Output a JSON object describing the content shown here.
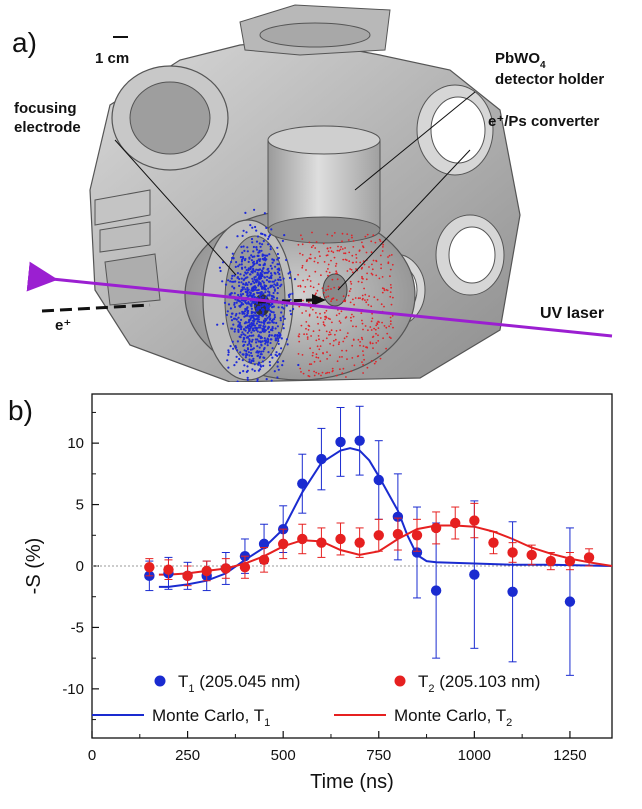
{
  "panel_a": {
    "label": "a)",
    "scale_bar": "1 cm",
    "labels": {
      "detector_holder_formula": "PbWO",
      "detector_holder_sub": "4",
      "detector_holder_text": "detector holder",
      "converter": "e⁺/Ps converter",
      "focusing_line1": "focusing",
      "focusing_line2": "electrode",
      "uv_laser": "UV laser",
      "positron": "e⁺"
    },
    "colors": {
      "laser": "#9b1fd1",
      "blue_cloud": "#1f2bd6",
      "red_cloud": "#e0242a"
    }
  },
  "chart_data": {
    "type": "scatter",
    "panel_label": "b)",
    "xlabel": "Time (ns)",
    "ylabel": "-S (%)",
    "xlim": [
      0,
      1360
    ],
    "ylim": [
      -14,
      14
    ],
    "xticks": [
      0,
      250,
      500,
      750,
      1000,
      1250
    ],
    "yticks": [
      -10,
      -5,
      0,
      5,
      10
    ],
    "zero_line": true,
    "legend_position": "bottom",
    "series": [
      {
        "name": "T1 (205.045 nm)",
        "name_main": "T",
        "name_sub": "1",
        "name_rest": " (205.045 nm)",
        "color": "#1a2bd0",
        "kind": "points",
        "x": [
          150,
          200,
          250,
          300,
          350,
          400,
          450,
          500,
          550,
          600,
          650,
          700,
          750,
          800,
          850,
          900,
          1000,
          1100,
          1250
        ],
        "y": [
          -0.8,
          -0.6,
          -0.8,
          -0.8,
          -0.2,
          0.8,
          1.8,
          3.0,
          6.7,
          8.7,
          10.1,
          10.2,
          7.0,
          4.0,
          1.1,
          -2.0,
          -0.7,
          -2.1,
          -2.9
        ],
        "err": [
          1.2,
          1.3,
          1.1,
          1.2,
          1.3,
          1.4,
          1.6,
          1.9,
          2.4,
          2.5,
          2.8,
          2.8,
          3.2,
          3.5,
          3.7,
          5.5,
          6.0,
          5.7,
          6.0
        ]
      },
      {
        "name": "T2 (205.103 nm)",
        "name_main": "T",
        "name_sub": "2",
        "name_rest": " (205.103 nm)",
        "color": "#e62020",
        "kind": "points",
        "x": [
          150,
          200,
          250,
          300,
          350,
          400,
          450,
          500,
          550,
          600,
          650,
          700,
          750,
          800,
          850,
          900,
          950,
          1000,
          1050,
          1100,
          1150,
          1200,
          1250,
          1300
        ],
        "y": [
          -0.1,
          -0.3,
          -0.8,
          -0.4,
          -0.2,
          -0.1,
          0.5,
          1.8,
          2.2,
          1.9,
          2.2,
          1.9,
          2.5,
          2.6,
          2.5,
          3.1,
          3.5,
          3.7,
          1.9,
          1.1,
          0.9,
          0.4,
          0.4,
          0.7
        ],
        "err": [
          0.7,
          0.8,
          0.8,
          0.8,
          0.8,
          0.9,
          1.0,
          1.2,
          1.2,
          1.2,
          1.3,
          1.2,
          1.3,
          1.3,
          1.3,
          1.3,
          1.3,
          1.4,
          0.9,
          0.8,
          0.8,
          0.7,
          0.7,
          0.7
        ]
      },
      {
        "name": "Monte Carlo, T1",
        "name_main": "Monte Carlo, T",
        "name_sub": "1",
        "name_rest": "",
        "color": "#1a2bd0",
        "kind": "line",
        "x": [
          175,
          200,
          250,
          300,
          350,
          400,
          450,
          500,
          550,
          600,
          650,
          675,
          700,
          725,
          750,
          800,
          825,
          850,
          875,
          900,
          1000,
          1100,
          1200,
          1360
        ],
        "y": [
          -1.7,
          -1.7,
          -1.5,
          -1.2,
          -0.6,
          0.5,
          1.5,
          3.0,
          6.0,
          8.4,
          9.4,
          9.6,
          9.4,
          8.6,
          7.3,
          4.5,
          2.5,
          0.9,
          0.4,
          0.3,
          0.2,
          0.1,
          0.1,
          0.0
        ]
      },
      {
        "name": "Monte Carlo, T2",
        "name_main": "Monte Carlo, T",
        "name_sub": "2",
        "name_rest": "",
        "color": "#e62020",
        "kind": "line",
        "x": [
          175,
          200,
          250,
          300,
          350,
          400,
          450,
          500,
          550,
          600,
          650,
          700,
          750,
          800,
          850,
          900,
          950,
          1000,
          1050,
          1100,
          1150,
          1200,
          1250,
          1300,
          1360
        ],
        "y": [
          -0.7,
          -0.7,
          -0.6,
          -0.4,
          -0.2,
          0.2,
          0.8,
          1.6,
          2.1,
          2.0,
          1.3,
          0.9,
          1.2,
          2.2,
          3.0,
          3.3,
          3.3,
          3.2,
          2.8,
          2.2,
          1.5,
          1.0,
          0.6,
          0.3,
          0.0
        ]
      }
    ]
  }
}
